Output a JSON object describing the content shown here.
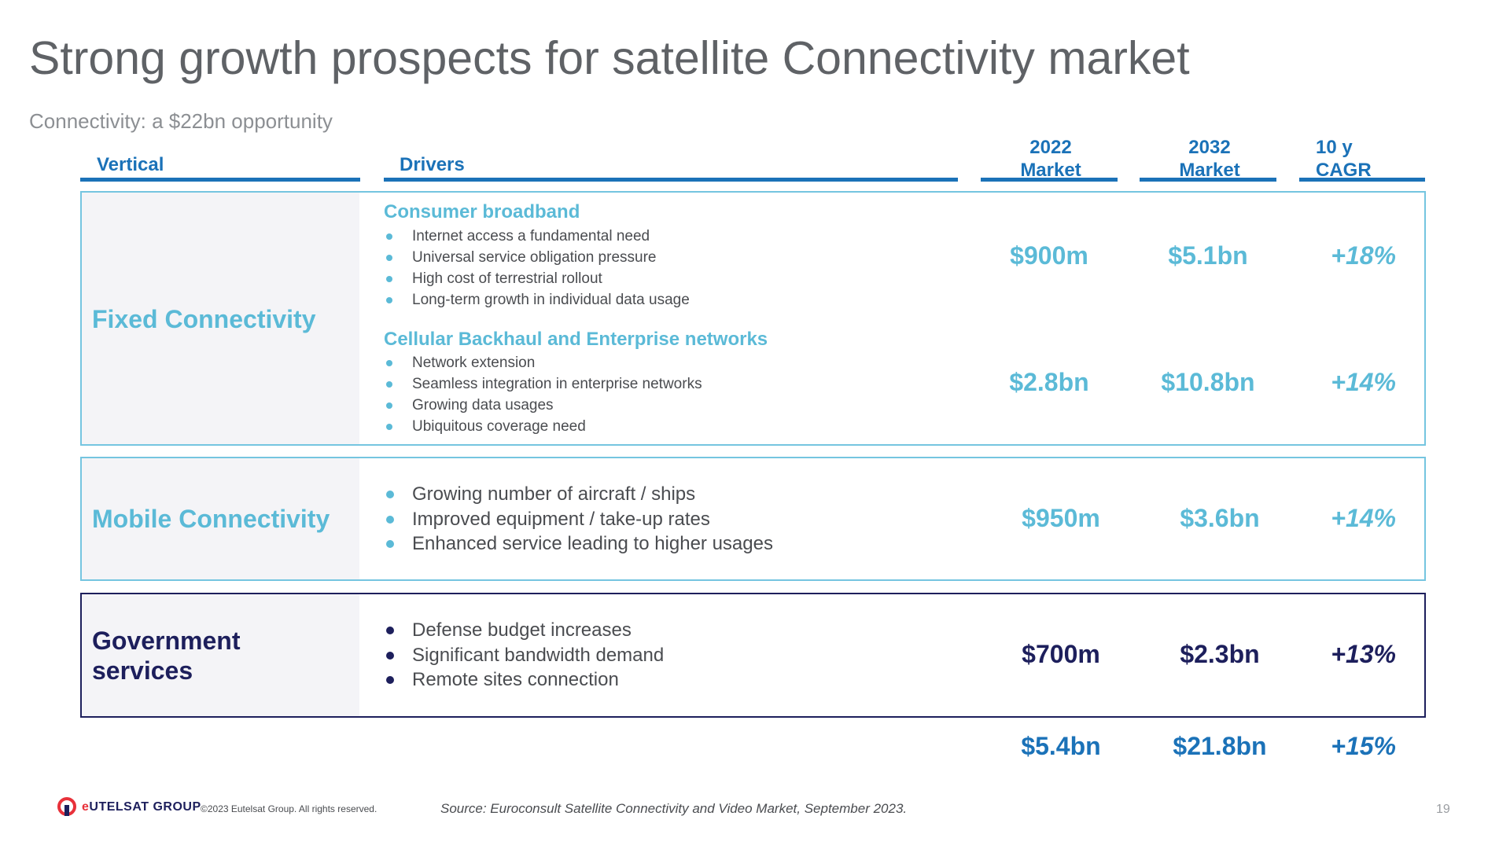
{
  "title": "Strong growth prospects for satellite Connectivity market",
  "subtitle": "Connectivity: a $22bn opportunity",
  "headers": {
    "vertical": "Vertical",
    "drivers": "Drivers",
    "market_2022": [
      "2022",
      "Market"
    ],
    "market_2032": [
      "2032",
      "Market"
    ],
    "cagr": [
      "10 y",
      "CAGR"
    ]
  },
  "rows": {
    "fixed": {
      "label": "Fixed Connectivity",
      "consumer": {
        "heading": "Consumer broadband",
        "bullets": [
          "Internet access a fundamental need",
          "Universal service obligation pressure",
          "High cost of terrestrial rollout",
          "Long-term growth in individual data usage"
        ],
        "market_2022": "$900m",
        "market_2032": "$5.1bn",
        "cagr": "+18%"
      },
      "cellular": {
        "heading": "Cellular Backhaul and Enterprise networks",
        "bullets": [
          "Network extension",
          "Seamless integration in enterprise networks",
          "Growing data usages",
          "Ubiquitous coverage need"
        ],
        "market_2022": "$2.8bn",
        "market_2032": "$10.8bn",
        "cagr": "+14%"
      }
    },
    "mobile": {
      "label": "Mobile Connectivity",
      "bullets": [
        "Growing number of aircraft / ships",
        "Improved equipment / take-up rates",
        "Enhanced service leading to higher usages"
      ],
      "market_2022": "$950m",
      "market_2032": "$3.6bn",
      "cagr": "+14%"
    },
    "government": {
      "label": [
        "Government",
        "services"
      ],
      "bullets": [
        "Defense budget increases",
        "Significant bandwidth demand",
        "Remote sites connection"
      ],
      "market_2022": "$700m",
      "market_2032": "$2.3bn",
      "cagr": "+13%"
    }
  },
  "totals": {
    "market_2022": "$5.4bn",
    "market_2032": "$21.8bn",
    "cagr": "+15%"
  },
  "footer": {
    "brand_prefix": "e",
    "brand_main": "UTELSAT GROUP",
    "copyright": "©2023 Eutelsat Group. All rights reserved.",
    "source": "Source: Euroconsult Satellite Connectivity and Video Market, September 2023.",
    "page": "19"
  },
  "colors": {
    "accent_blue": "#1b72b8",
    "light_blue": "#5bbad7",
    "navy": "#1d1f5c",
    "brand_red": "#e8313a"
  }
}
